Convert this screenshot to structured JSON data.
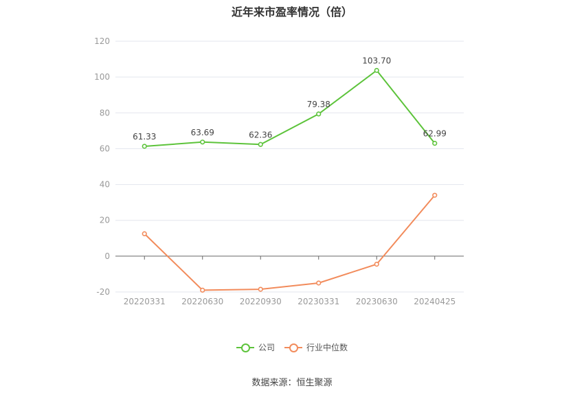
{
  "title": "近年来市盈率情况（倍）",
  "source": "数据来源：恒生聚源",
  "colors": {
    "company": "#5cc33a",
    "industry": "#f28b5b",
    "grid": "#e3e6ee",
    "axis": "#666666",
    "tick": "#999999",
    "label": "#444444"
  },
  "legend": {
    "company": "公司",
    "industry": "行业中位数"
  },
  "chart_data": {
    "type": "line",
    "title": "近年来市盈率情况（倍）",
    "categories": [
      "20220331",
      "20220630",
      "20220930",
      "20230331",
      "20230630",
      "20240425"
    ],
    "ylim": [
      -20,
      120
    ],
    "yticks": [
      -20,
      0,
      20,
      40,
      60,
      80,
      100,
      120
    ],
    "grid": true,
    "legend_position": "bottom",
    "series": [
      {
        "name": "公司",
        "values": [
          61.33,
          63.69,
          62.36,
          79.38,
          103.7,
          62.99
        ],
        "labels": [
          "61.33",
          "63.69",
          "62.36",
          "79.38",
          "103.70",
          "62.99"
        ]
      },
      {
        "name": "行业中位数",
        "values": [
          12.5,
          -19.0,
          -18.5,
          -15.0,
          -4.5,
          34.0
        ]
      }
    ]
  }
}
